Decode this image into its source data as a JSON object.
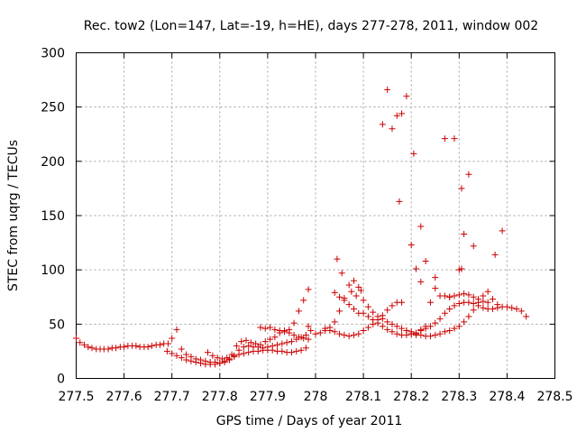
{
  "chart_data": {
    "type": "scatter",
    "title": "Rec. tow2 (Lon=147, Lat=-19, h=HE), days 277-278, 2011, window 002",
    "xlabel": "GPS time / Days of year 2011",
    "ylabel": "STEC from uqrg / TECUs",
    "xlim": [
      277.5,
      278.5
    ],
    "ylim": [
      0,
      300
    ],
    "xticks": [
      "277.5",
      "277.6",
      "277.7",
      "277.8",
      "277.9",
      "278",
      "278.1",
      "278.2",
      "278.3",
      "278.4",
      "278.5"
    ],
    "yticks": [
      "0",
      "50",
      "100",
      "150",
      "200",
      "250",
      "300"
    ],
    "grid": true,
    "marker": "+",
    "color": "#cc0000",
    "series": [
      {
        "x": [
          277.5,
          277.508,
          277.517,
          277.525,
          277.533,
          277.542,
          277.55,
          277.558,
          277.567,
          277.575,
          277.583,
          277.592,
          277.6,
          277.608,
          277.617,
          277.625,
          277.633,
          277.642,
          277.65,
          277.658,
          277.667,
          277.675,
          277.683,
          277.692
        ],
        "y": [
          37,
          33,
          31,
          29,
          28,
          27,
          27,
          27,
          27,
          28,
          28,
          29,
          29,
          30,
          30,
          30,
          29,
          29,
          29,
          30,
          31,
          31,
          32,
          32
        ]
      },
      {
        "x": [
          277.69,
          277.7,
          277.71,
          277.72,
          277.73,
          277.74,
          277.75,
          277.76,
          277.77,
          277.78,
          277.79,
          277.8,
          277.81,
          277.82,
          277.83,
          277.84,
          277.85,
          277.86,
          277.87,
          277.88,
          277.89,
          277.9,
          277.91,
          277.92,
          277.93,
          277.94,
          277.95,
          277.96,
          277.97,
          277.98
        ],
        "y": [
          25,
          23,
          21,
          19,
          17,
          16,
          15,
          14,
          13,
          13,
          13,
          14,
          16,
          18,
          20,
          22,
          23,
          24,
          25,
          25,
          26,
          26,
          26,
          25,
          25,
          24,
          24,
          25,
          26,
          28
        ]
      },
      {
        "x": [
          277.7,
          277.71,
          277.72,
          277.73,
          277.74,
          277.75,
          277.76,
          277.77,
          277.78,
          277.79,
          277.8,
          277.81,
          277.82,
          277.83,
          277.84,
          277.85,
          277.86,
          277.87,
          277.88,
          277.89,
          277.9,
          277.91,
          277.92,
          277.93,
          277.94,
          277.95,
          277.96,
          277.97,
          277.98
        ],
        "y": [
          37,
          45,
          27,
          22,
          20,
          18,
          17,
          16,
          15,
          15,
          14,
          15,
          17,
          21,
          26,
          29,
          30,
          29,
          29,
          28,
          29,
          30,
          31,
          32,
          33,
          34,
          36,
          38,
          40
        ]
      },
      {
        "x": [
          277.775,
          277.785,
          277.795,
          277.805,
          277.815,
          277.825,
          277.835,
          277.845,
          277.855,
          277.865,
          277.875,
          277.885,
          277.895,
          277.905,
          277.915,
          277.925,
          277.935,
          277.945,
          277.955,
          277.965,
          277.975,
          277.985
        ],
        "y": [
          24,
          21,
          19,
          18,
          19,
          22,
          30,
          34,
          35,
          33,
          32,
          31,
          34,
          36,
          38,
          42,
          44,
          42,
          40,
          38,
          37,
          36
        ]
      },
      {
        "x": [
          277.885,
          277.895,
          277.905,
          277.915,
          277.925,
          277.935,
          277.945,
          277.955,
          277.965,
          277.975,
          277.985
        ],
        "y": [
          47,
          46,
          47,
          45,
          44,
          43,
          45,
          51,
          62,
          72,
          82
        ]
      },
      {
        "x": [
          277.985,
          277.99,
          278.0,
          278.01,
          278.02,
          278.03,
          278.04,
          278.05,
          278.06,
          278.07,
          278.08,
          278.09,
          278.1,
          278.11,
          278.12,
          278.13,
          278.14,
          278.15,
          278.16,
          278.17,
          278.18,
          278.19,
          278.2,
          278.21,
          278.22,
          278.23,
          278.24,
          278.25,
          278.26,
          278.27,
          278.28,
          278.29,
          278.3,
          278.31,
          278.32,
          278.33,
          278.34,
          278.35,
          278.36,
          278.37,
          278.38,
          278.39,
          278.4,
          278.41,
          278.42,
          278.43,
          278.44
        ],
        "y": [
          48,
          44,
          41,
          42,
          44,
          47,
          79,
          75,
          72,
          68,
          64,
          60,
          60,
          57,
          54,
          51,
          48,
          45,
          43,
          41,
          40,
          40,
          41,
          42,
          44,
          46,
          48,
          51,
          55,
          60,
          64,
          67,
          69,
          70,
          70,
          69,
          67,
          65,
          64,
          64,
          65,
          66,
          66,
          65,
          64,
          62,
          57
        ]
      },
      {
        "x": [
          278.02,
          278.03,
          278.04,
          278.05,
          278.06,
          278.07,
          278.08,
          278.09,
          278.1,
          278.11,
          278.12,
          278.13,
          278.14,
          278.15,
          278.16,
          278.17,
          278.18,
          278.19,
          278.2,
          278.21,
          278.22,
          278.23,
          278.24,
          278.25,
          278.26,
          278.27,
          278.28,
          278.29,
          278.3,
          278.31,
          278.32,
          278.33,
          278.34,
          278.35,
          278.36,
          278.37,
          278.38
        ],
        "y": [
          46,
          44,
          43,
          41,
          40,
          39,
          40,
          41,
          44,
          47,
          50,
          54,
          58,
          63,
          67,
          70,
          70,
          44,
          41,
          40,
          40,
          39,
          39,
          40,
          41,
          43,
          44,
          46,
          48,
          52,
          57,
          63,
          70,
          76,
          80,
          73,
          68
        ]
      },
      {
        "x": [
          278.04,
          278.05,
          278.06,
          278.07,
          278.08,
          278.09,
          278.1,
          278.11,
          278.12,
          278.13,
          278.14,
          278.15,
          278.16,
          278.17,
          278.18,
          278.19,
          278.2,
          278.21,
          278.22,
          278.23,
          278.24,
          278.25,
          278.26,
          278.27,
          278.28,
          278.29,
          278.3,
          278.31,
          278.32,
          278.33,
          278.34,
          278.35,
          278.36
        ],
        "y": [
          52,
          62,
          74,
          86,
          90,
          84,
          72,
          66,
          61,
          57,
          55,
          52,
          50,
          48,
          46,
          44,
          43,
          41,
          45,
          48,
          70,
          83,
          76,
          76,
          75,
          76,
          77,
          78,
          77,
          75,
          73,
          71,
          70
        ]
      },
      {
        "x": [
          278.045,
          278.055,
          278.075,
          278.085,
          278.095,
          278.14,
          278.15,
          278.16,
          278.17,
          278.18,
          278.19,
          278.2,
          278.21,
          278.22,
          278.23,
          278.25,
          278.27,
          278.28,
          278.29,
          278.3,
          278.305,
          278.31,
          278.32,
          278.33,
          278.375,
          278.39
        ],
        "y": [
          110,
          97,
          80,
          76,
          81,
          234,
          266,
          230,
          242,
          244,
          260,
          123,
          101,
          89,
          108,
          93,
          221,
          75,
          221,
          100,
          175,
          133,
          188,
          122,
          114,
          136
        ]
      },
      {
        "x": [
          278.175,
          278.205,
          278.22,
          278.305
        ],
        "y": [
          163,
          207,
          140,
          101
        ]
      }
    ]
  }
}
